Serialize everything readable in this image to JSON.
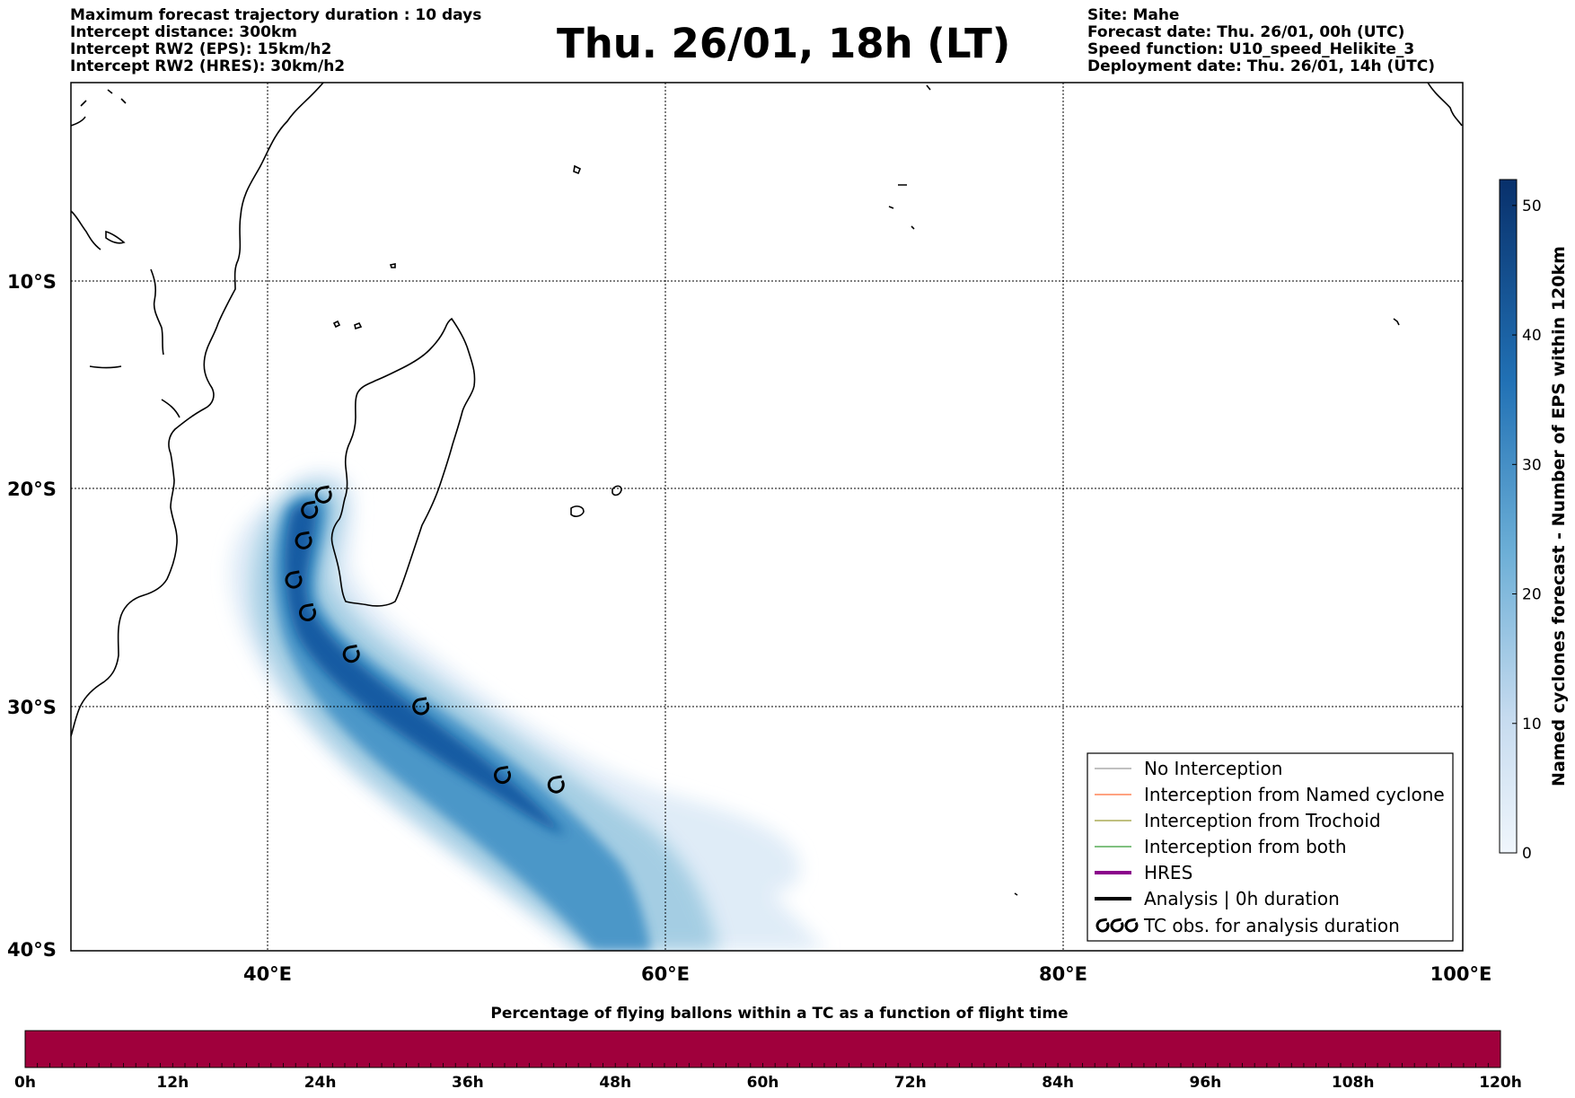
{
  "header": {
    "left_lines": [
      "Maximum forecast trajectory duration : 10 days",
      "Intercept distance: 300km",
      "Intercept RW2 (EPS):  15km/h2",
      "Intercept RW2 (HRES): 30km/h2"
    ],
    "title": "Thu. 26/01, 18h (LT)",
    "right_lines": [
      "Site: Mahe",
      "Forecast date: Thu. 26/01, 00h (UTC)",
      "Speed function: U10_speed_Helikite_3",
      "Deployment date: Thu. 26/01, 14h (UTC)"
    ]
  },
  "map": {
    "x_ticks": [
      "40°E",
      "60°E",
      "80°E",
      "100°E"
    ],
    "y_ticks": [
      "10°S",
      "20°S",
      "30°S",
      "40°S"
    ],
    "lon_range": [
      30,
      100
    ],
    "lat_range": [
      -40.3,
      -0.3
    ],
    "tc_obs_positions": [
      {
        "lon": 42.7,
        "lat": -20.3
      },
      {
        "lon": 42.0,
        "lat": -21.0
      },
      {
        "lon": 41.7,
        "lat": -22.4
      },
      {
        "lon": 41.2,
        "lat": -24.2
      },
      {
        "lon": 41.9,
        "lat": -25.7
      },
      {
        "lon": 44.1,
        "lat": -27.6
      },
      {
        "lon": 47.6,
        "lat": -30.0
      },
      {
        "lon": 51.7,
        "lat": -32.9
      },
      {
        "lon": 54.4,
        "lat": -33.3
      }
    ]
  },
  "colorbar": {
    "label": "Named cyclones forecast - Number of EPS within 120km",
    "ticks": [
      "0",
      "10",
      "20",
      "30",
      "40",
      "50"
    ],
    "range": [
      0,
      52
    ],
    "color_low": "#e9f2fb",
    "color_high": "#08306b"
  },
  "legend": {
    "items": [
      {
        "label": "No Interception",
        "color": "#808080",
        "width": 1
      },
      {
        "label": "Interception from Named cyclone",
        "color": "#ff4500",
        "width": 1
      },
      {
        "label": "Interception from Trochoid",
        "color": "#808000",
        "width": 1
      },
      {
        "label": "Interception from both",
        "color": "#008000",
        "width": 1
      },
      {
        "label": "HRES",
        "color": "#8b008b",
        "width": 4
      },
      {
        "label": "Analysis | 0h duration",
        "color": "#000000",
        "width": 4
      },
      {
        "label": "TC obs. for analysis duration",
        "color": "",
        "width": 0,
        "symbol": "tc"
      }
    ]
  },
  "timeline": {
    "title": "Percentage of flying ballons within a TC as a function of flight time",
    "ticks": [
      "0h",
      "12h",
      "24h",
      "36h",
      "48h",
      "60h",
      "72h",
      "84h",
      "96h",
      "108h",
      "120h"
    ],
    "bar_color": "#a0003c"
  }
}
